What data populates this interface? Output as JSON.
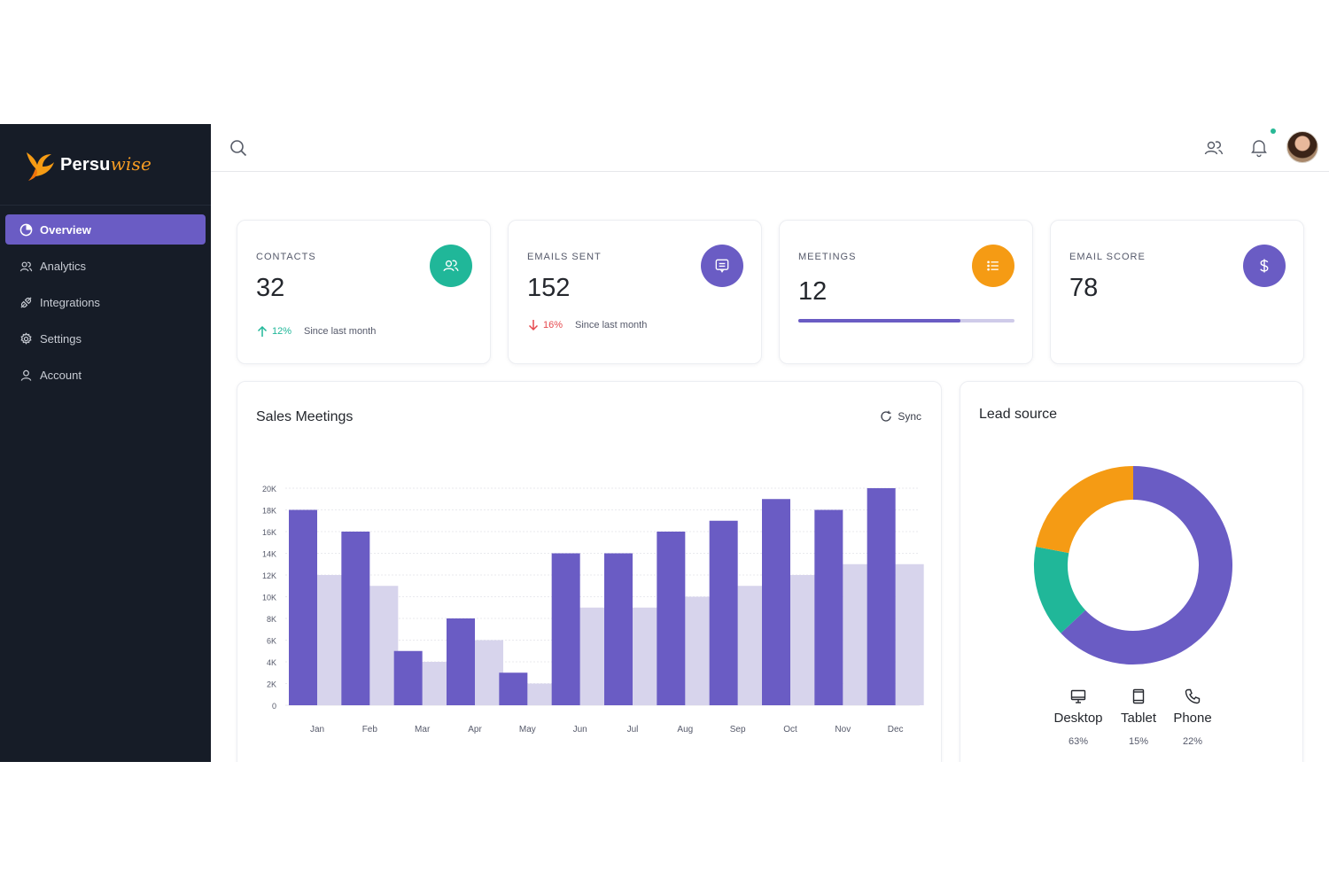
{
  "brand": {
    "name_main": "Persu",
    "name_accent": "wise"
  },
  "sidebar": {
    "items": [
      {
        "label": "Overview",
        "icon": "pie-chart-icon",
        "active": true
      },
      {
        "label": "Analytics",
        "icon": "users-icon",
        "active": false
      },
      {
        "label": "Integrations",
        "icon": "integrations-icon",
        "active": false
      },
      {
        "label": "Settings",
        "icon": "gear-icon",
        "active": false
      },
      {
        "label": "Account",
        "icon": "user-icon",
        "active": false
      }
    ]
  },
  "colors": {
    "purple": "#6a5cc4",
    "teal": "#20b799",
    "orange": "#f59b14",
    "red": "#e5484d",
    "light_purple": "#d7d4ec",
    "sidebar": "#161c27"
  },
  "stats": [
    {
      "label": "CONTACTS",
      "value": "32",
      "trend_dir": "up",
      "trend_pct": "12%",
      "trend_text": "Since last month",
      "icon": "users-icon",
      "icon_color": "#20b799"
    },
    {
      "label": "EMAILS SENT",
      "value": "152",
      "trend_dir": "down",
      "trend_pct": "16%",
      "trend_text": "Since last month",
      "icon": "message-icon",
      "icon_color": "#6a5cc4"
    },
    {
      "label": "MEETINGS",
      "value": "12",
      "progress": 0.75,
      "icon": "list-icon",
      "icon_color": "#f59b14"
    },
    {
      "label": "EMAIL SCORE",
      "value": "78",
      "icon": "dollar-icon",
      "icon_color": "#6a5cc4"
    }
  ],
  "sales_meetings": {
    "title": "Sales Meetings",
    "sync_label": "Sync"
  },
  "lead_source": {
    "title": "Lead source",
    "items": [
      {
        "name": "Desktop",
        "pct": "63%",
        "icon": "desktop-icon"
      },
      {
        "name": "Tablet",
        "pct": "15%",
        "icon": "tablet-icon"
      },
      {
        "name": "Phone",
        "pct": "22%",
        "icon": "phone-icon"
      }
    ]
  },
  "chart_data": [
    {
      "type": "bar",
      "title": "Sales Meetings",
      "categories": [
        "Jan",
        "Feb",
        "Mar",
        "Apr",
        "May",
        "Jun",
        "Jul",
        "Aug",
        "Sep",
        "Oct",
        "Nov",
        "Dec"
      ],
      "series": [
        {
          "values": [
            18000,
            16000,
            5000,
            8000,
            3000,
            14000,
            14000,
            16000,
            17000,
            19000,
            18000,
            20000
          ],
          "color": "#6a5cc4"
        },
        {
          "values": [
            12000,
            11000,
            4000,
            6000,
            2000,
            9000,
            9000,
            10000,
            11000,
            12000,
            13000,
            13000
          ],
          "color": "#d7d4ec"
        }
      ],
      "ylim": [
        0,
        20000
      ],
      "yticks": [
        "0",
        "2K",
        "4K",
        "6K",
        "8K",
        "10K",
        "12K",
        "14K",
        "16K",
        "18K",
        "20K"
      ],
      "grid": true
    },
    {
      "type": "pie",
      "donut": true,
      "labels": [
        "Desktop",
        "Tablet",
        "Phone"
      ],
      "values": [
        63,
        15,
        22
      ],
      "colors": [
        "#6a5cc4",
        "#20b799",
        "#f59b14"
      ]
    }
  ]
}
